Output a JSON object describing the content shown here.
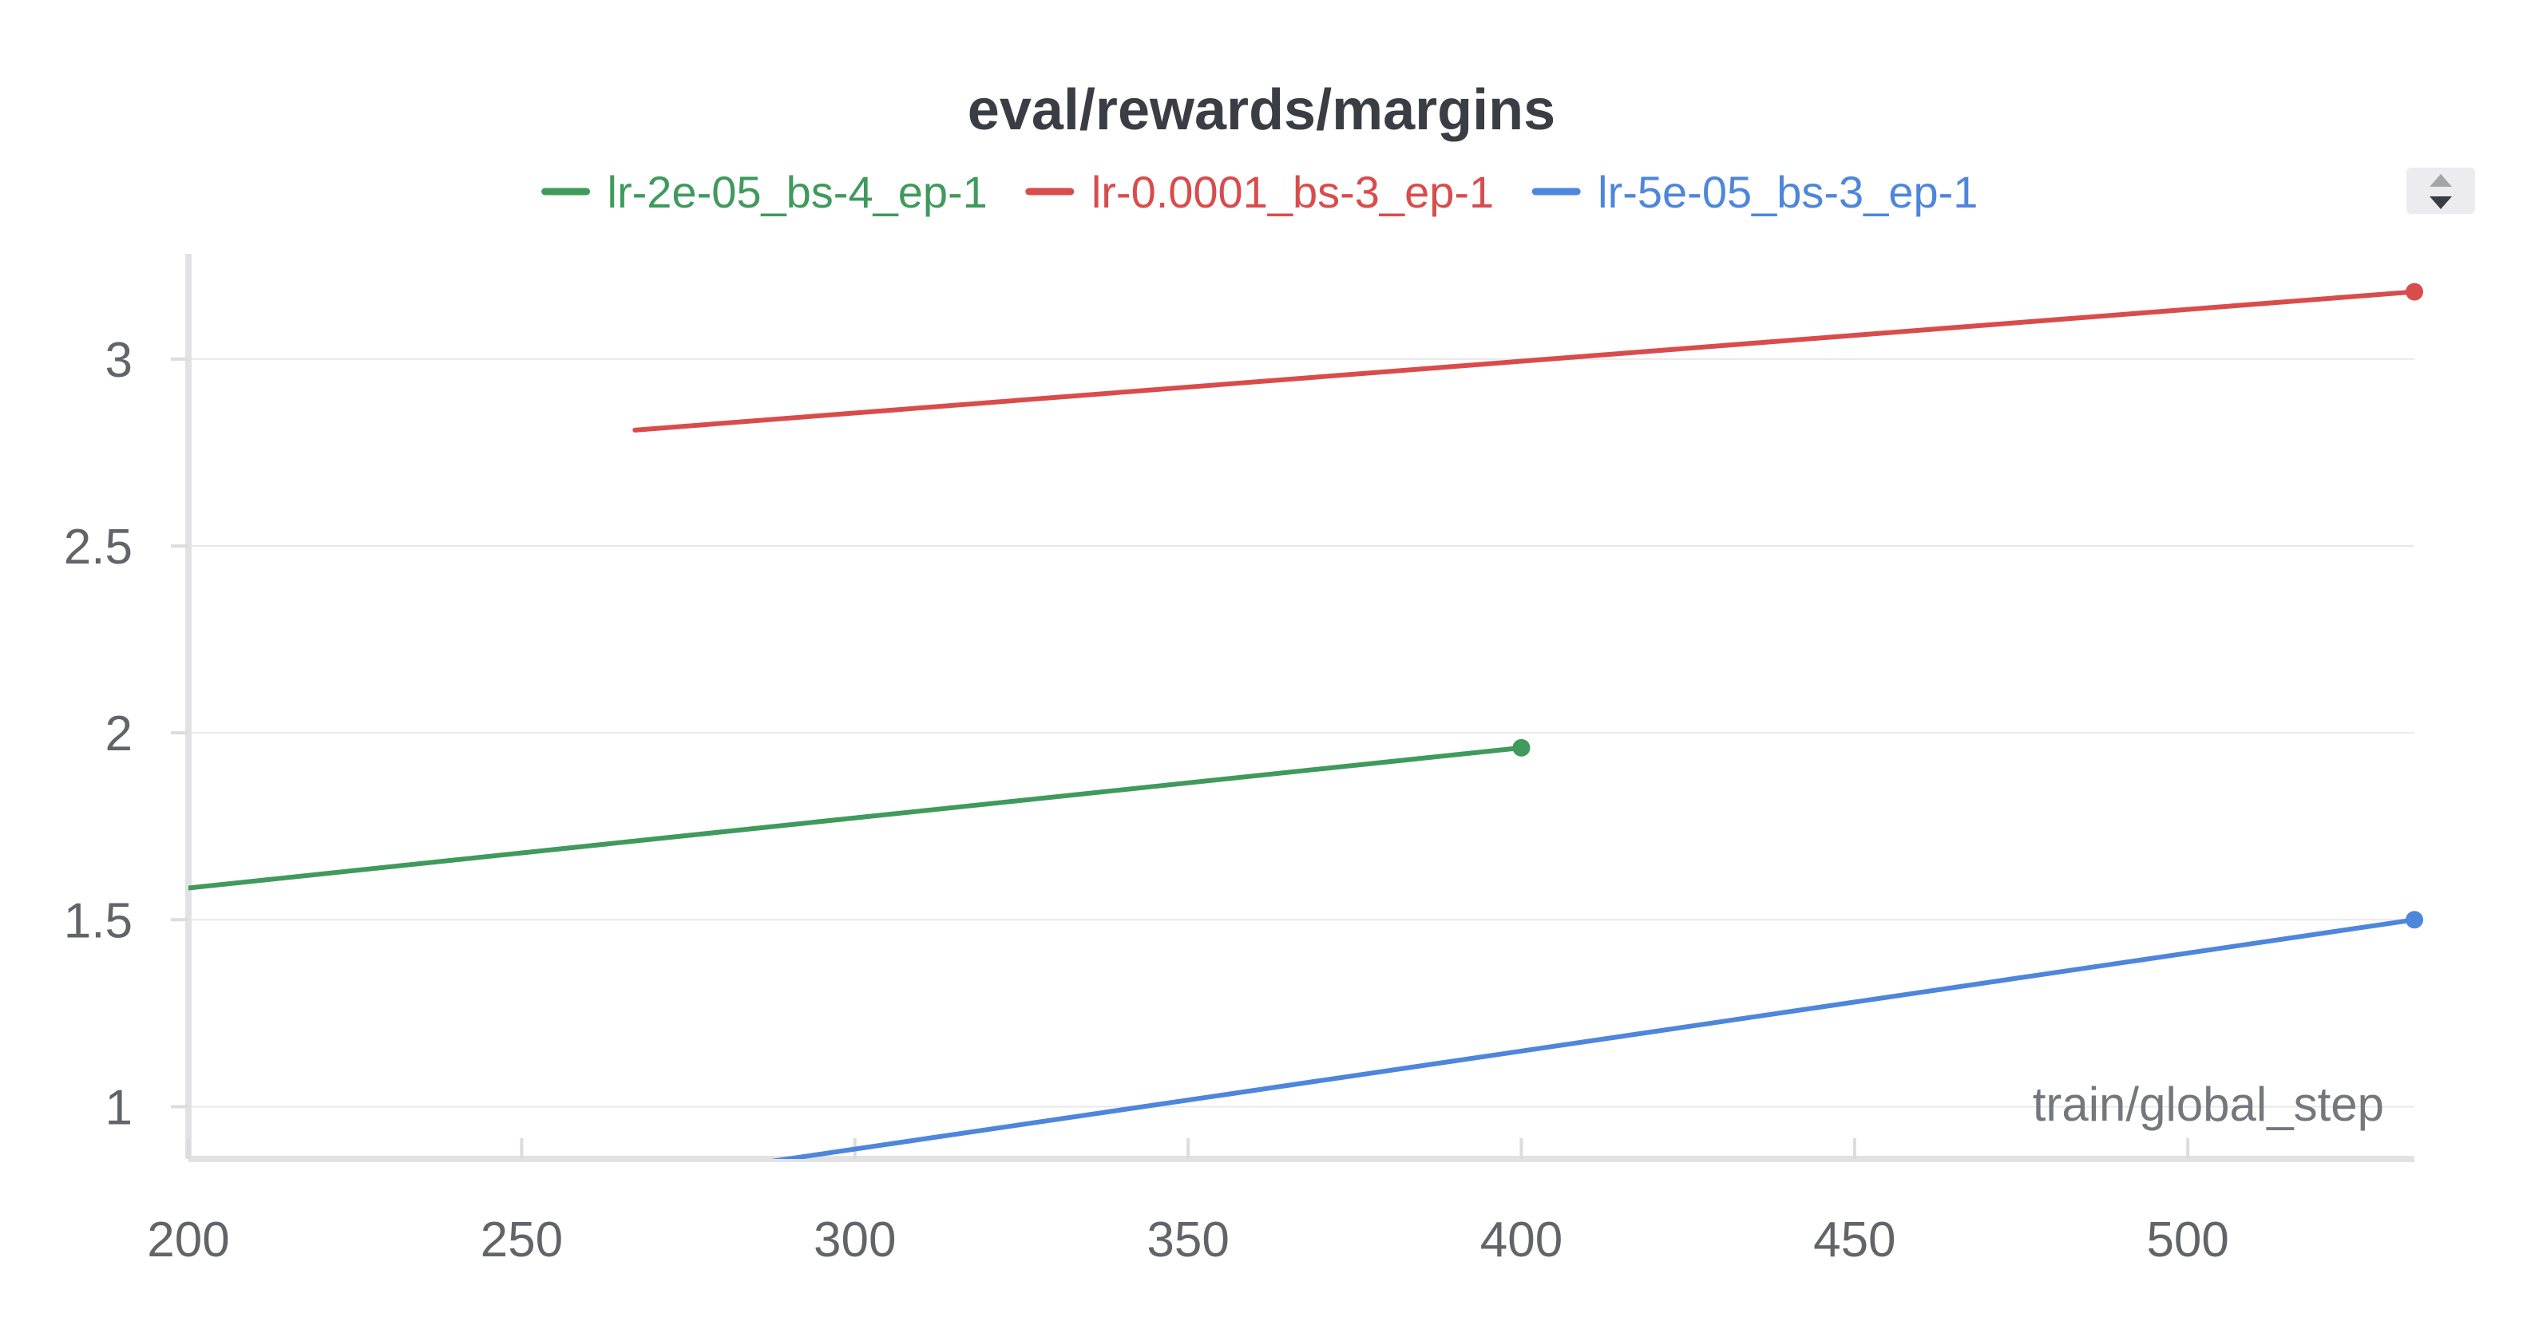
{
  "chart_data": {
    "type": "line",
    "title": "eval/rewards/margins",
    "xlabel": "train/global_step",
    "ylabel": "",
    "xlim": [
      200,
      534
    ],
    "ylim": [
      0.86,
      3.32
    ],
    "x_ticks": [
      "200",
      "250",
      "300",
      "350",
      "400",
      "450",
      "500"
    ],
    "y_ticks": [
      "1",
      "1.5",
      "2",
      "2.5",
      "3"
    ],
    "grid": true,
    "legend_position": "top-center",
    "series": [
      {
        "name": "lr-2e-05_bs-4_ep-1",
        "color": "#3f9a5c",
        "x": [
          200,
          400
        ],
        "y": [
          1.585,
          1.96
        ]
      },
      {
        "name": "lr-0.0001_bs-3_ep-1",
        "color": "#d94c4c",
        "x": [
          267,
          534
        ],
        "y": [
          2.81,
          3.18
        ]
      },
      {
        "name": "lr-5e-05_bs-3_ep-1",
        "color": "#4e86db",
        "x": [
          267,
          534
        ],
        "y": [
          0.8,
          1.5
        ]
      }
    ]
  },
  "controls": {
    "scroll_icon": "up-down-arrows-icon"
  }
}
